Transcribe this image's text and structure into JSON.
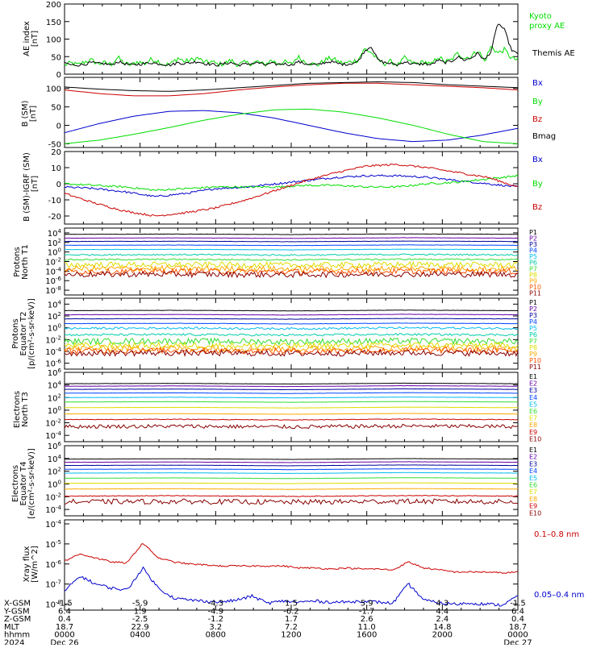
{
  "colors": {
    "black": "#000000",
    "green": "#00dd00",
    "blue": "#0000cc",
    "red": "#cc0000",
    "navy": "#000099",
    "purple": "#6600aa",
    "dblue": "#0044ff",
    "cyan": "#00bbee",
    "teal": "#00ccaa",
    "lgreen": "#33dd33",
    "yellow": "#dddd00",
    "orange": "#ffaa00",
    "orangered": "#ff5500",
    "crimson": "#cc0033",
    "darkred": "#880000"
  },
  "chart_data": [
    {
      "type": "line",
      "ylabel": "AE index",
      "ylabel_sub": "[nT]",
      "yticks": [
        "200",
        "150",
        "100",
        "50",
        "0"
      ],
      "ylim": [
        0,
        200
      ],
      "series": [
        {
          "name": "Kyoto proxy AE",
          "values": [
            26,
            32,
            26,
            35,
            40,
            30,
            32,
            28,
            48,
            30,
            26,
            36,
            30,
            42,
            38,
            26,
            30,
            46,
            36,
            40,
            46,
            33,
            36,
            28,
            30,
            40,
            26,
            33,
            30,
            36,
            26,
            40,
            30,
            35,
            28,
            50,
            36,
            30,
            26,
            40,
            46,
            36,
            30,
            36,
            40,
            72,
            62,
            40,
            30,
            36,
            26,
            46,
            33,
            30,
            36,
            26,
            50,
            36,
            40,
            60,
            46,
            50,
            70,
            36,
            80,
            60,
            70,
            46,
            40
          ]
        },
        {
          "name": "Themis AE",
          "values": [
            33,
            26,
            26,
            28,
            33,
            30,
            30,
            26,
            36,
            30,
            26,
            28,
            30,
            33,
            30,
            28,
            26,
            33,
            30,
            33,
            36,
            30,
            28,
            26,
            30,
            33,
            26,
            28,
            30,
            33,
            26,
            30,
            28,
            30,
            26,
            36,
            30,
            28,
            26,
            33,
            36,
            30,
            28,
            30,
            36,
            66,
            80,
            40,
            33,
            30,
            26,
            36,
            30,
            28,
            30,
            26,
            40,
            33,
            36,
            50,
            40,
            46,
            60,
            40,
            66,
            146,
            126,
            70,
            56
          ]
        }
      ]
    },
    {
      "type": "line",
      "ylabel": "B (SM)",
      "ylabel_sub": "[nT]",
      "yticks": [
        "100",
        "50",
        "0",
        "-50"
      ],
      "ylim": [
        -60,
        130
      ],
      "series": [
        {
          "name": "Bx",
          "values": [
            -20,
            5,
            25,
            38,
            40,
            34,
            20,
            0,
            -20,
            -36,
            -44,
            -40,
            -26,
            -8
          ]
        },
        {
          "name": "By",
          "values": [
            -50,
            -40,
            -24,
            -6,
            14,
            30,
            42,
            44,
            36,
            20,
            0,
            -24,
            -44,
            -50
          ]
        },
        {
          "name": "Bz",
          "values": [
            96,
            86,
            80,
            80,
            86,
            96,
            104,
            110,
            114,
            114,
            110,
            106,
            102,
            96
          ]
        },
        {
          "name": "Bmag",
          "values": [
            104,
            98,
            94,
            92,
            96,
            102,
            108,
            114,
            116,
            118,
            116,
            110,
            106,
            102
          ]
        }
      ]
    },
    {
      "type": "line",
      "ylabel": "B (SM)-IGRF (SM)",
      "ylabel_sub": "[nT]",
      "yticks": [
        "20",
        "10",
        "0",
        "-10",
        "-20"
      ],
      "ylim": [
        -25,
        20
      ],
      "series": [
        {
          "name": "Bx",
          "values": [
            -2,
            -3,
            -5,
            -8,
            -6,
            -3,
            -2,
            0,
            2,
            4,
            5,
            5,
            4,
            2,
            0,
            -2
          ]
        },
        {
          "name": "By",
          "values": [
            0,
            -1,
            -2,
            -4,
            -3,
            -2,
            -2,
            -2,
            -1,
            -1,
            -2,
            -2,
            0,
            1,
            3,
            5
          ]
        },
        {
          "name": "Bz",
          "values": [
            -6,
            -12,
            -17,
            -20,
            -18,
            -15,
            -10,
            -4,
            2,
            7,
            11,
            12,
            10,
            7,
            4,
            -2
          ]
        }
      ]
    },
    {
      "type": "line",
      "ylabel": "Protons",
      "ylabel_sub": "North T1",
      "yticks": [
        "10^4",
        "10^2",
        "10^0",
        "10^-2",
        "10^-4",
        "10^-6",
        "10^-8"
      ],
      "ylim_log10": [
        -9,
        5
      ],
      "channels": [
        "P1",
        "P2",
        "P3",
        "P4",
        "P5",
        "P6",
        "P7",
        "P8",
        "P9",
        "P10",
        "P11"
      ],
      "levels_log10": [
        3.7,
        2.9,
        2.2,
        1.4,
        0.5,
        -0.6,
        -1.6,
        -2.7,
        -3.5,
        -4.1,
        -4.7
      ]
    },
    {
      "type": "line",
      "ylabel": "Protons",
      "ylabel_sub": "Equator T2",
      "unit": "[p/(cm²-s-sr-keV)]",
      "yticks": [
        "10^4",
        "10^2",
        "10^0",
        "10^-2",
        "10^-4",
        "10^-6"
      ],
      "ylim_log10": [
        -7,
        5
      ],
      "channels": [
        "P1",
        "P2",
        "P3",
        "P4",
        "P5",
        "P6",
        "P7",
        "P8",
        "P9",
        "P10",
        "P11"
      ],
      "levels_log10": [
        2.9,
        2.2,
        1.5,
        0.7,
        -0.1,
        -1.2,
        -2.3,
        -3.0,
        -3.5,
        -3.9,
        -4.3
      ]
    },
    {
      "type": "line",
      "ylabel": "Electrons",
      "ylabel_sub": "North T3",
      "yticks": [
        "10^6",
        "10^4",
        "10^2",
        "10^0",
        "10^-2",
        "10^-4"
      ],
      "ylim_log10": [
        -5,
        6
      ],
      "channels": [
        "E1",
        "E2",
        "E3",
        "E4",
        "E5",
        "E6",
        "E7",
        "E8",
        "E9",
        "E10"
      ],
      "levels_log10": [
        4.2,
        3.8,
        3.3,
        2.7,
        2.0,
        1.3,
        0.4,
        -0.6,
        -1.5,
        -2.6
      ]
    },
    {
      "type": "line",
      "ylabel": "Electrons",
      "ylabel_sub": "Equator T4",
      "unit": "[e/(cm²-s-sr-keV)]",
      "yticks": [
        "10^6",
        "10^4",
        "10^2",
        "10^0",
        "10^-2",
        "10^-4"
      ],
      "ylim_log10": [
        -5,
        6
      ],
      "channels": [
        "E1",
        "E2",
        "E3",
        "E4",
        "E5",
        "E6",
        "E7",
        "E8",
        "E9",
        "E10"
      ],
      "levels_log10": [
        3.9,
        3.4,
        2.9,
        2.3,
        1.7,
        0.9,
        0.1,
        -0.8,
        -1.9,
        -2.8
      ]
    },
    {
      "type": "line",
      "ylabel": "Xray flux",
      "ylabel_sub": "[W/m^2]",
      "yticks": [
        "10^-4",
        "10^-5",
        "10^-6",
        "10^-7",
        "10^-8"
      ],
      "ylim_log10": [
        -8.3,
        -3.8
      ],
      "series": [
        {
          "name": "0.1–0.8 nm",
          "values": [
            -5.85,
            -5.5,
            -5.7,
            -5.9,
            -5.95,
            -4.95,
            -5.7,
            -5.9,
            -6.0,
            -6.05,
            -6.1,
            -6.1,
            -6.1,
            -6.1,
            -6.1,
            -6.2,
            -6.2,
            -6.25,
            -6.2,
            -6.25,
            -6.25,
            -6.3,
            -5.9,
            -6.2,
            -6.3,
            -6.4,
            -6.4,
            -6.4,
            -6.45,
            -6.4
          ]
        },
        {
          "name": "0.05–0.4 nm",
          "values": [
            -7.35,
            -6.6,
            -7.0,
            -7.2,
            -7.3,
            -6.2,
            -7.2,
            -7.7,
            -7.8,
            -7.85,
            -7.9,
            -7.8,
            -7.6,
            -7.95,
            -7.85,
            -7.9,
            -7.85,
            -7.9,
            -7.9,
            -7.85,
            -7.9,
            -7.95,
            -7.0,
            -7.8,
            -7.95,
            -8.0,
            -7.95,
            -8.0,
            -8.05,
            -7.6
          ]
        }
      ]
    }
  ],
  "right_labels": {
    "ae": [
      "Kyoto",
      "proxy AE",
      "Themis AE"
    ],
    "b": [
      "Bx",
      "By",
      "Bz",
      "Bmag"
    ],
    "db": [
      "Bx",
      "By",
      "Bz"
    ],
    "xray": [
      "0.1–0.8 nm",
      "0.05–0.4 nm"
    ]
  },
  "xaxis": {
    "row_labels": [
      "X-GSM",
      "Y-GSM",
      "Z-GSM",
      "MLT",
      "hhmm",
      "2024"
    ],
    "columns": [
      [
        "-1.5",
        "6.4",
        "0.4",
        "18.7",
        "0000",
        "Dec 26"
      ],
      [
        "-5.9",
        "1.9",
        "-2.5",
        "22.9",
        "0400",
        ""
      ],
      [
        "-4.3",
        "-4.9",
        "-1.2",
        "3.2",
        "0800",
        ""
      ],
      [
        "1.5",
        "-6.2",
        "1.7",
        "7.2",
        "1200",
        ""
      ],
      [
        "5.9",
        "-1.7",
        "2.6",
        "11.0",
        "1600",
        ""
      ],
      [
        "4.3",
        "4.4",
        "2.4",
        "14.8",
        "2000",
        ""
      ],
      [
        "-1.5",
        "6.4",
        "0.4",
        "18.7",
        "0000",
        "Dec 27"
      ]
    ]
  }
}
